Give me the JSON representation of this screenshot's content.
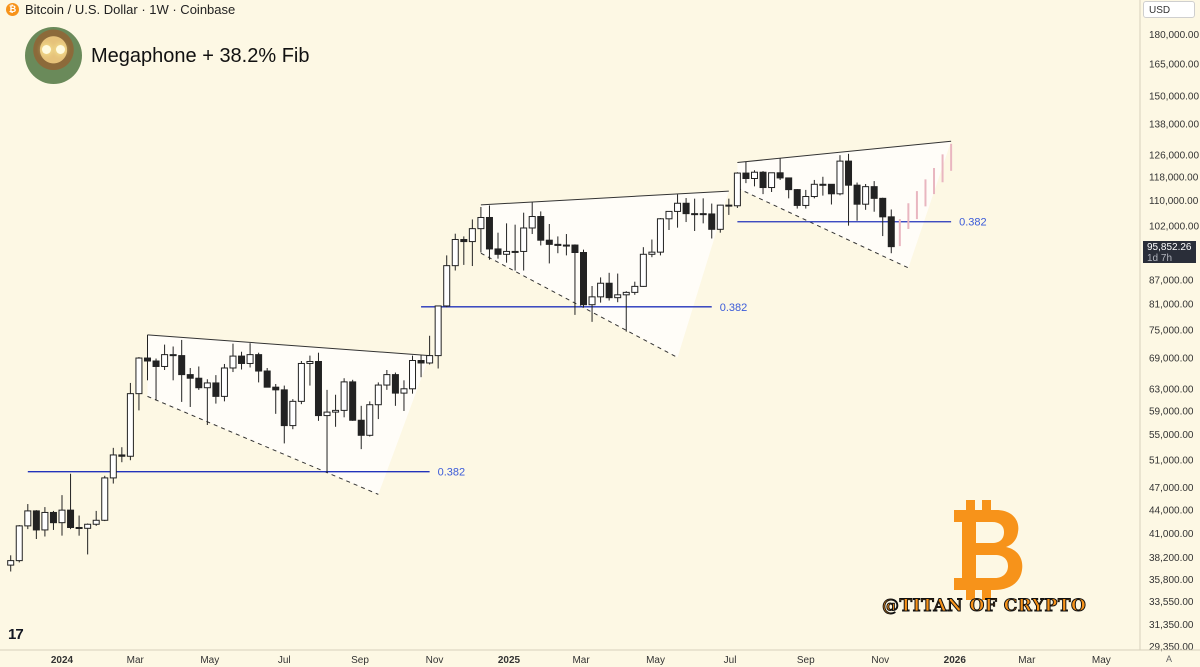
{
  "header": {
    "symbol_line": "Bitcoin / U.S. Dollar · 1W · Coinbase",
    "coin_glyph": "₿"
  },
  "title": "Megaphone + 38.2% Fib",
  "currency_button": "USD",
  "current_price": {
    "value": "95,852.26",
    "countdown": "1d 7h"
  },
  "tv_logo": "17",
  "watermark": {
    "handle": "@TITAN OF CRYPTO",
    "glyph": "₿"
  },
  "axis_mode": "A",
  "colors": {
    "background": "#fdf8e4",
    "bear_candle": "#222222",
    "bull_candle": "#ffffff",
    "fib_line": "#2233bb",
    "fib_label": "#3b5bd9",
    "projection": "#e9b6c0",
    "brand_orange": "#f7931a"
  },
  "chart_data": {
    "type": "candlestick",
    "title": "Megaphone + 38.2% Fib",
    "symbol": "Bitcoin / U.S. Dollar",
    "interval": "1W",
    "exchange": "Coinbase",
    "y_scale": "log",
    "ylim": [
      29350,
      190000
    ],
    "xlim": [
      "2023-11-20",
      "2026-06-15"
    ],
    "y_ticks": [
      {
        "value": 180000,
        "label": "180,000.00"
      },
      {
        "value": 165000,
        "label": "165,000.00"
      },
      {
        "value": 150000,
        "label": "150,000.00"
      },
      {
        "value": 138000,
        "label": "138,000.00"
      },
      {
        "value": 126000,
        "label": "126,000.00"
      },
      {
        "value": 118000,
        "label": "118,000.00"
      },
      {
        "value": 110000,
        "label": "110,000.00"
      },
      {
        "value": 102000,
        "label": "102,000.00"
      },
      {
        "value": 87000,
        "label": "87,000.00"
      },
      {
        "value": 81000,
        "label": "81,000.00"
      },
      {
        "value": 75000,
        "label": "75,000.00"
      },
      {
        "value": 69000,
        "label": "69,000.00"
      },
      {
        "value": 63000,
        "label": "63,000.00"
      },
      {
        "value": 59000,
        "label": "59,000.00"
      },
      {
        "value": 55000,
        "label": "55,000.00"
      },
      {
        "value": 51000,
        "label": "51,000.00"
      },
      {
        "value": 47000,
        "label": "47,000.00"
      },
      {
        "value": 44000,
        "label": "44,000.00"
      },
      {
        "value": 41000,
        "label": "41,000.00"
      },
      {
        "value": 38200,
        "label": "38,200.00"
      },
      {
        "value": 35800,
        "label": "35,800.00"
      },
      {
        "value": 33550,
        "label": "33,550.00"
      },
      {
        "value": 31350,
        "label": "31,350.00"
      },
      {
        "value": 29350,
        "label": "29,350.00"
      }
    ],
    "x_ticks": [
      {
        "date": "2024-01-01",
        "label": "2024",
        "bold": true
      },
      {
        "date": "2024-03-01",
        "label": "Mar"
      },
      {
        "date": "2024-05-01",
        "label": "May"
      },
      {
        "date": "2024-07-01",
        "label": "Jul"
      },
      {
        "date": "2024-09-01",
        "label": "Sep"
      },
      {
        "date": "2024-11-01",
        "label": "Nov"
      },
      {
        "date": "2025-01-01",
        "label": "2025",
        "bold": true
      },
      {
        "date": "2025-03-01",
        "label": "Mar"
      },
      {
        "date": "2025-05-01",
        "label": "May"
      },
      {
        "date": "2025-07-01",
        "label": "Jul"
      },
      {
        "date": "2025-09-01",
        "label": "Sep"
      },
      {
        "date": "2025-11-01",
        "label": "Nov"
      },
      {
        "date": "2026-01-01",
        "label": "2026",
        "bold": true
      },
      {
        "date": "2026-03-01",
        "label": "Mar"
      },
      {
        "date": "2026-05-01",
        "label": "May"
      }
    ],
    "candles": [
      {
        "d": "2023-11-20",
        "o": 37300,
        "h": 38400,
        "l": 36600,
        "c": 37800
      },
      {
        "d": "2023-11-27",
        "o": 37800,
        "h": 42000,
        "l": 37600,
        "c": 41900
      },
      {
        "d": "2023-12-04",
        "o": 41900,
        "h": 44700,
        "l": 41500,
        "c": 43800
      },
      {
        "d": "2023-12-11",
        "o": 43800,
        "h": 43900,
        "l": 40300,
        "c": 41400
      },
      {
        "d": "2023-12-18",
        "o": 41400,
        "h": 44300,
        "l": 40600,
        "c": 43600
      },
      {
        "d": "2023-12-25",
        "o": 43600,
        "h": 43800,
        "l": 41400,
        "c": 42300
      },
      {
        "d": "2024-01-01",
        "o": 42300,
        "h": 45900,
        "l": 40700,
        "c": 43900
      },
      {
        "d": "2024-01-08",
        "o": 43900,
        "h": 48900,
        "l": 41500,
        "c": 41700
      },
      {
        "d": "2024-01-15",
        "o": 41700,
        "h": 43200,
        "l": 40700,
        "c": 41600
      },
      {
        "d": "2024-01-22",
        "o": 41600,
        "h": 42200,
        "l": 38500,
        "c": 42100
      },
      {
        "d": "2024-01-29",
        "o": 42100,
        "h": 43800,
        "l": 41900,
        "c": 42600
      },
      {
        "d": "2024-02-05",
        "o": 42600,
        "h": 48600,
        "l": 42500,
        "c": 48300
      },
      {
        "d": "2024-02-12",
        "o": 48300,
        "h": 52800,
        "l": 47500,
        "c": 51700
      },
      {
        "d": "2024-02-19",
        "o": 51700,
        "h": 52900,
        "l": 50600,
        "c": 51500
      },
      {
        "d": "2024-02-26",
        "o": 51500,
        "h": 64000,
        "l": 50900,
        "c": 62000
      },
      {
        "d": "2024-03-04",
        "o": 62000,
        "h": 69100,
        "l": 59000,
        "c": 68900
      },
      {
        "d": "2024-03-11",
        "o": 68900,
        "h": 73800,
        "l": 64500,
        "c": 68300
      },
      {
        "d": "2024-03-18",
        "o": 68300,
        "h": 68800,
        "l": 60800,
        "c": 67200
      },
      {
        "d": "2024-03-25",
        "o": 67200,
        "h": 71700,
        "l": 66500,
        "c": 69600
      },
      {
        "d": "2024-04-01",
        "o": 69600,
        "h": 71300,
        "l": 64500,
        "c": 69400
      },
      {
        "d": "2024-04-08",
        "o": 69400,
        "h": 72700,
        "l": 60500,
        "c": 65600
      },
      {
        "d": "2024-04-15",
        "o": 65600,
        "h": 66900,
        "l": 59600,
        "c": 64900
      },
      {
        "d": "2024-04-22",
        "o": 64900,
        "h": 67200,
        "l": 62700,
        "c": 63100
      },
      {
        "d": "2024-04-29",
        "o": 63100,
        "h": 64700,
        "l": 56500,
        "c": 64000
      },
      {
        "d": "2024-05-06",
        "o": 64000,
        "h": 65500,
        "l": 60200,
        "c": 61500
      },
      {
        "d": "2024-05-13",
        "o": 61500,
        "h": 67700,
        "l": 60600,
        "c": 66900
      },
      {
        "d": "2024-05-20",
        "o": 66900,
        "h": 71900,
        "l": 66100,
        "c": 69300
      },
      {
        "d": "2024-05-27",
        "o": 69300,
        "h": 70200,
        "l": 66600,
        "c": 67800
      },
      {
        "d": "2024-06-03",
        "o": 67800,
        "h": 72000,
        "l": 67000,
        "c": 69600
      },
      {
        "d": "2024-06-10",
        "o": 69600,
        "h": 70000,
        "l": 64100,
        "c": 66300
      },
      {
        "d": "2024-06-17",
        "o": 66300,
        "h": 66900,
        "l": 63300,
        "c": 63200
      },
      {
        "d": "2024-06-24",
        "o": 63200,
        "h": 63800,
        "l": 58400,
        "c": 62700
      },
      {
        "d": "2024-07-01",
        "o": 62700,
        "h": 63500,
        "l": 53500,
        "c": 56400
      },
      {
        "d": "2024-07-08",
        "o": 56400,
        "h": 61000,
        "l": 55800,
        "c": 60600
      },
      {
        "d": "2024-07-15",
        "o": 60600,
        "h": 68300,
        "l": 60100,
        "c": 67800
      },
      {
        "d": "2024-07-22",
        "o": 67800,
        "h": 69400,
        "l": 63500,
        "c": 68200
      },
      {
        "d": "2024-07-29",
        "o": 68200,
        "h": 70000,
        "l": 57200,
        "c": 58100
      },
      {
        "d": "2024-08-05",
        "o": 58100,
        "h": 62700,
        "l": 49000,
        "c": 58700
      },
      {
        "d": "2024-08-12",
        "o": 58700,
        "h": 61800,
        "l": 56200,
        "c": 59000
      },
      {
        "d": "2024-08-19",
        "o": 59000,
        "h": 64900,
        "l": 57800,
        "c": 64200
      },
      {
        "d": "2024-08-26",
        "o": 64200,
        "h": 64600,
        "l": 57200,
        "c": 57300
      },
      {
        "d": "2024-09-02",
        "o": 57300,
        "h": 59800,
        "l": 52600,
        "c": 54800
      },
      {
        "d": "2024-09-09",
        "o": 54800,
        "h": 60600,
        "l": 54600,
        "c": 60000
      },
      {
        "d": "2024-09-16",
        "o": 60000,
        "h": 64100,
        "l": 57500,
        "c": 63600
      },
      {
        "d": "2024-09-23",
        "o": 63600,
        "h": 66500,
        "l": 62700,
        "c": 65600
      },
      {
        "d": "2024-09-30",
        "o": 65600,
        "h": 66000,
        "l": 59800,
        "c": 62100
      },
      {
        "d": "2024-10-07",
        "o": 62100,
        "h": 64500,
        "l": 58900,
        "c": 62900
      },
      {
        "d": "2024-10-14",
        "o": 62900,
        "h": 69400,
        "l": 62000,
        "c": 68400
      },
      {
        "d": "2024-10-21",
        "o": 68400,
        "h": 69500,
        "l": 65100,
        "c": 67900
      },
      {
        "d": "2024-10-28",
        "o": 67900,
        "h": 73600,
        "l": 67600,
        "c": 69400
      },
      {
        "d": "2024-11-04",
        "o": 69400,
        "h": 80500,
        "l": 66800,
        "c": 80400
      },
      {
        "d": "2024-11-11",
        "o": 80400,
        "h": 93400,
        "l": 80100,
        "c": 90600
      },
      {
        "d": "2024-11-18",
        "o": 90600,
        "h": 99600,
        "l": 89300,
        "c": 97900
      },
      {
        "d": "2024-11-25",
        "o": 97900,
        "h": 98800,
        "l": 90800,
        "c": 97300
      },
      {
        "d": "2024-12-02",
        "o": 97300,
        "h": 103900,
        "l": 90500,
        "c": 101100
      },
      {
        "d": "2024-12-09",
        "o": 101100,
        "h": 107800,
        "l": 94200,
        "c": 104500
      },
      {
        "d": "2024-12-16",
        "o": 104500,
        "h": 108300,
        "l": 92200,
        "c": 95200
      },
      {
        "d": "2024-12-23",
        "o": 95200,
        "h": 99900,
        "l": 92500,
        "c": 93700
      },
      {
        "d": "2024-12-30",
        "o": 93700,
        "h": 102700,
        "l": 91400,
        "c": 94500
      },
      {
        "d": "2025-01-06",
        "o": 94500,
        "h": 102300,
        "l": 89300,
        "c": 94500
      },
      {
        "d": "2025-01-13",
        "o": 94500,
        "h": 106000,
        "l": 89300,
        "c": 101300
      },
      {
        "d": "2025-01-20",
        "o": 101300,
        "h": 109300,
        "l": 99500,
        "c": 104800
      },
      {
        "d": "2025-01-27",
        "o": 104800,
        "h": 106400,
        "l": 96200,
        "c": 97700
      },
      {
        "d": "2025-02-03",
        "o": 97700,
        "h": 102500,
        "l": 91200,
        "c": 96500
      },
      {
        "d": "2025-02-10",
        "o": 96500,
        "h": 98800,
        "l": 94000,
        "c": 96200
      },
      {
        "d": "2025-02-17",
        "o": 96200,
        "h": 99500,
        "l": 93400,
        "c": 96300
      },
      {
        "d": "2025-02-24",
        "o": 96300,
        "h": 96500,
        "l": 78300,
        "c": 94200
      },
      {
        "d": "2025-03-03",
        "o": 94200,
        "h": 95000,
        "l": 80000,
        "c": 80700
      },
      {
        "d": "2025-03-10",
        "o": 80700,
        "h": 85300,
        "l": 76700,
        "c": 82600
      },
      {
        "d": "2025-03-17",
        "o": 82600,
        "h": 87500,
        "l": 81200,
        "c": 86000
      },
      {
        "d": "2025-03-24",
        "o": 86000,
        "h": 88700,
        "l": 81700,
        "c": 82400
      },
      {
        "d": "2025-03-31",
        "o": 82400,
        "h": 88500,
        "l": 81300,
        "c": 83100
      },
      {
        "d": "2025-04-07",
        "o": 83100,
        "h": 84000,
        "l": 74500,
        "c": 83700
      },
      {
        "d": "2025-04-14",
        "o": 83700,
        "h": 86400,
        "l": 83100,
        "c": 85200
      },
      {
        "d": "2025-04-21",
        "o": 85200,
        "h": 95700,
        "l": 85100,
        "c": 93700
      },
      {
        "d": "2025-04-28",
        "o": 93700,
        "h": 97900,
        "l": 92900,
        "c": 94300
      },
      {
        "d": "2025-05-05",
        "o": 94300,
        "h": 104300,
        "l": 93400,
        "c": 104100
      },
      {
        "d": "2025-05-12",
        "o": 104100,
        "h": 105800,
        "l": 100700,
        "c": 106400
      },
      {
        "d": "2025-05-19",
        "o": 106400,
        "h": 111900,
        "l": 101400,
        "c": 109000
      },
      {
        "d": "2025-05-26",
        "o": 109000,
        "h": 110700,
        "l": 103100,
        "c": 105700
      },
      {
        "d": "2025-06-02",
        "o": 105700,
        "h": 110500,
        "l": 100400,
        "c": 105700
      },
      {
        "d": "2025-06-09",
        "o": 105700,
        "h": 110600,
        "l": 102700,
        "c": 105600
      },
      {
        "d": "2025-06-16",
        "o": 105600,
        "h": 108900,
        "l": 98200,
        "c": 100900
      },
      {
        "d": "2025-06-23",
        "o": 100900,
        "h": 108500,
        "l": 99900,
        "c": 108400
      },
      {
        "d": "2025-06-30",
        "o": 108400,
        "h": 110500,
        "l": 105300,
        "c": 108200
      },
      {
        "d": "2025-07-07",
        "o": 108200,
        "h": 119500,
        "l": 107500,
        "c": 119200
      },
      {
        "d": "2025-07-14",
        "o": 119200,
        "h": 123200,
        "l": 115700,
        "c": 117300
      },
      {
        "d": "2025-07-21",
        "o": 117300,
        "h": 120200,
        "l": 114600,
        "c": 119500
      },
      {
        "d": "2025-07-28",
        "o": 119500,
        "h": 119900,
        "l": 112000,
        "c": 114200
      },
      {
        "d": "2025-08-04",
        "o": 114200,
        "h": 119300,
        "l": 112700,
        "c": 119300
      },
      {
        "d": "2025-08-11",
        "o": 119300,
        "h": 124500,
        "l": 116800,
        "c": 117500
      },
      {
        "d": "2025-08-18",
        "o": 117500,
        "h": 117600,
        "l": 110600,
        "c": 113500
      },
      {
        "d": "2025-08-25",
        "o": 113500,
        "h": 113700,
        "l": 107300,
        "c": 108300
      },
      {
        "d": "2025-09-01",
        "o": 108300,
        "h": 113400,
        "l": 107300,
        "c": 111200
      },
      {
        "d": "2025-09-08",
        "o": 111200,
        "h": 116800,
        "l": 110600,
        "c": 115300
      },
      {
        "d": "2025-09-15",
        "o": 115300,
        "h": 117900,
        "l": 111500,
        "c": 115300
      },
      {
        "d": "2025-09-22",
        "o": 115300,
        "h": 115400,
        "l": 108600,
        "c": 112100
      },
      {
        "d": "2025-09-29",
        "o": 112100,
        "h": 125700,
        "l": 111600,
        "c": 123500
      },
      {
        "d": "2025-10-06",
        "o": 123500,
        "h": 126200,
        "l": 102000,
        "c": 115000
      },
      {
        "d": "2025-10-13",
        "o": 115000,
        "h": 115900,
        "l": 103500,
        "c": 108700
      },
      {
        "d": "2025-10-20",
        "o": 108700,
        "h": 115400,
        "l": 106900,
        "c": 114500
      },
      {
        "d": "2025-10-27",
        "o": 114500,
        "h": 116400,
        "l": 106300,
        "c": 110600
      },
      {
        "d": "2025-11-03",
        "o": 110600,
        "h": 110800,
        "l": 98900,
        "c": 104700
      },
      {
        "d": "2025-11-10",
        "o": 104700,
        "h": 107000,
        "l": 94000,
        "c": 95852
      }
    ],
    "projection": [
      {
        "d": "2025-11-17",
        "lo": 96000,
        "hi": 104000
      },
      {
        "d": "2025-11-24",
        "lo": 101000,
        "hi": 109000
      },
      {
        "d": "2025-12-01",
        "lo": 104000,
        "hi": 113000
      },
      {
        "d": "2025-12-08",
        "lo": 108000,
        "hi": 117000
      },
      {
        "d": "2025-12-15",
        "lo": 112000,
        "hi": 121000
      },
      {
        "d": "2025-12-22",
        "lo": 116000,
        "hi": 126000
      },
      {
        "d": "2025-12-29",
        "lo": 120000,
        "hi": 130000
      }
    ],
    "megaphones": [
      {
        "top": [
          [
            "2024-03-11",
            73800
          ],
          [
            "2024-10-28",
            69400
          ]
        ],
        "bottom": [
          [
            "2024-03-11",
            61500
          ],
          [
            "2024-09-16",
            46000
          ]
        ],
        "wedge": [
          [
            "2024-10-28",
            69400
          ],
          [
            "2024-09-16",
            46000
          ]
        ]
      },
      {
        "top": [
          [
            "2024-12-09",
            108500
          ],
          [
            "2025-06-30",
            113000
          ]
        ],
        "bottom": [
          [
            "2024-12-09",
            94000
          ],
          [
            "2025-05-19",
            69000
          ]
        ],
        "wedge": [
          [
            "2025-06-30",
            113000
          ],
          [
            "2025-05-19",
            69000
          ]
        ]
      },
      {
        "top": [
          [
            "2025-07-07",
            123000
          ],
          [
            "2025-12-29",
            131000
          ]
        ],
        "bottom": [
          [
            "2025-07-07",
            114000
          ],
          [
            "2025-11-24",
            90000
          ]
        ],
        "wedge": [
          [
            "2025-12-29",
            131000
          ],
          [
            "2025-11-24",
            90000
          ]
        ]
      }
    ],
    "fib_levels": [
      {
        "label": "0.382",
        "value": 49200,
        "from": "2023-12-04",
        "to": "2024-10-28"
      },
      {
        "label": "0.382",
        "value": 80200,
        "from": "2024-10-21",
        "to": "2025-06-16"
      },
      {
        "label": "0.382",
        "value": 103200,
        "from": "2025-07-07",
        "to": "2025-12-29"
      }
    ]
  }
}
